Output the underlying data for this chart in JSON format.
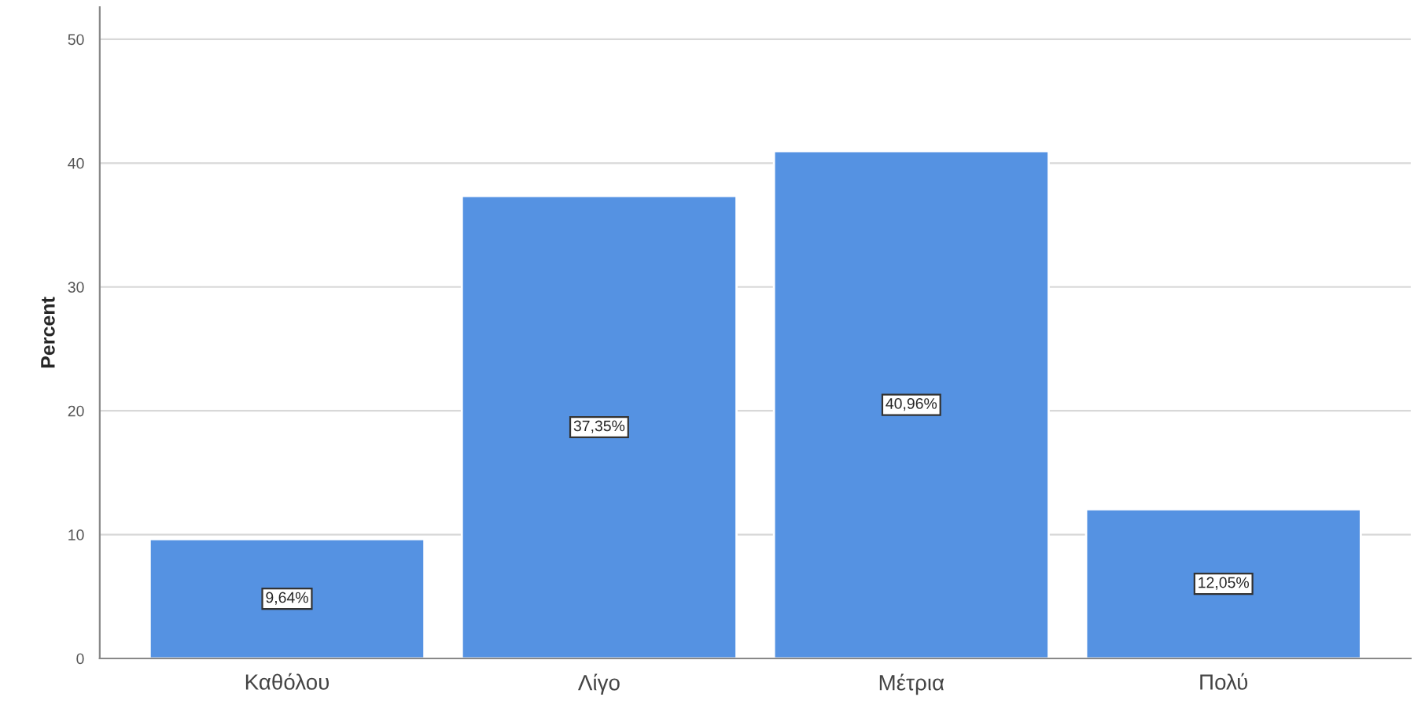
{
  "chart_data": {
    "type": "bar",
    "ylabel": "Percent",
    "categories": [
      "Καθόλου",
      "Λίγο",
      "Μέτρια",
      "Πολύ"
    ],
    "values": [
      9.64,
      37.35,
      40.96,
      12.05
    ],
    "value_labels": [
      "9,64%",
      "37,35%",
      "40,96%",
      "12,05%"
    ],
    "color": "#5592e2",
    "ylim": [
      0,
      52.6
    ],
    "yticks": [
      0,
      10,
      20,
      30,
      40,
      50
    ],
    "grid": "y"
  }
}
